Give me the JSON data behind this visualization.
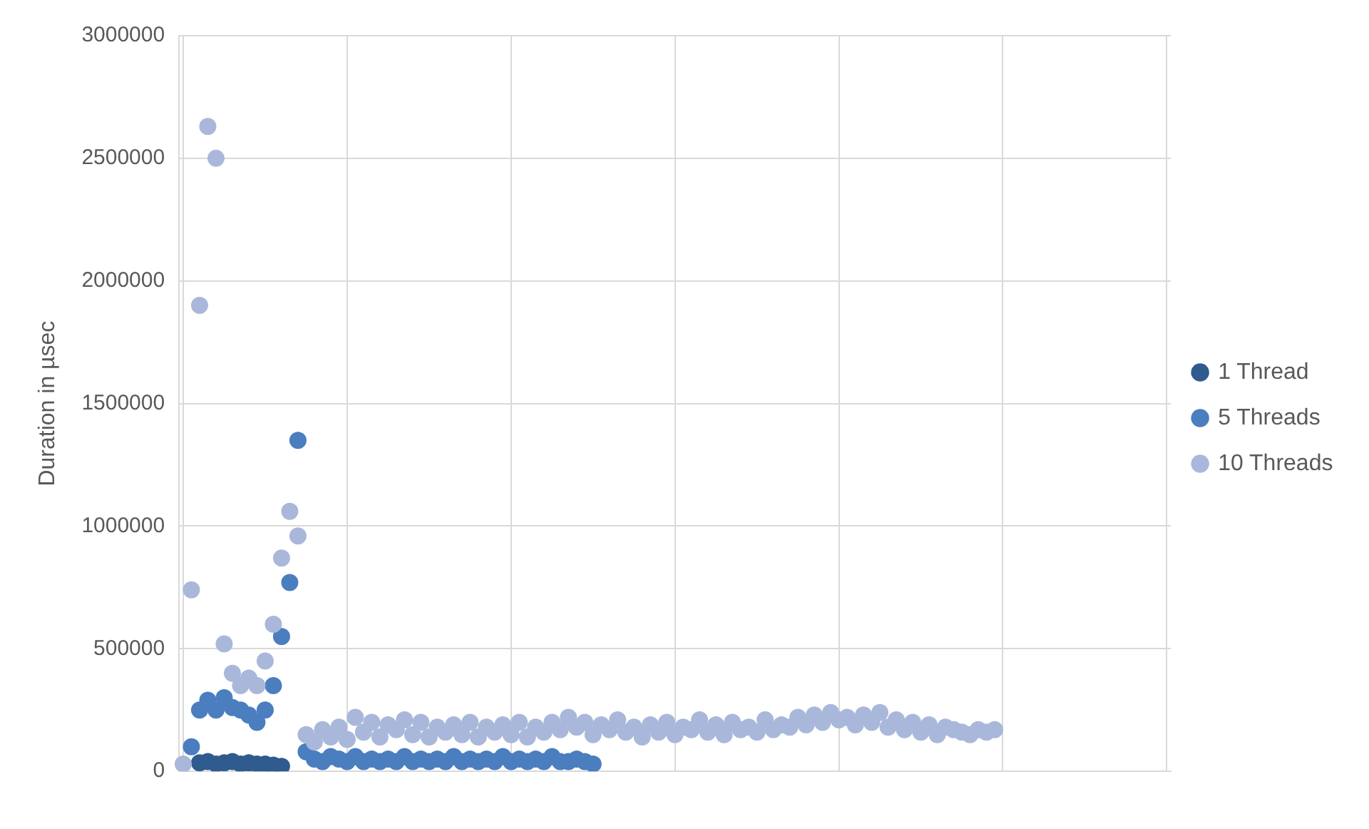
{
  "chart_data": {
    "type": "scatter",
    "ylabel": "Duration in µsec",
    "categories": [
      null,
      null,
      null,
      null,
      null,
      null,
      null,
      null,
      null,
      null,
      null,
      null,
      null,
      null,
      null,
      null,
      null,
      null,
      null,
      null,
      null,
      null,
      null,
      null,
      null,
      null,
      null,
      null,
      null,
      null,
      null,
      null,
      null,
      null,
      null,
      null,
      null,
      null,
      null,
      null,
      null,
      null,
      null,
      null,
      null,
      null,
      null,
      null,
      null,
      null,
      null,
      null,
      null,
      null,
      null,
      null,
      null,
      null,
      null,
      null,
      null,
      null,
      null,
      null,
      null,
      null,
      null,
      null,
      null,
      null,
      null,
      null,
      null,
      null,
      null,
      null,
      null,
      null,
      null,
      null,
      null,
      null,
      null,
      null,
      null,
      null,
      null,
      null,
      null,
      null,
      null,
      null,
      null,
      null,
      null,
      null,
      null,
      null,
      null,
      null,
      null,
      null,
      null,
      null,
      null,
      null,
      null,
      null,
      null,
      null,
      null,
      null,
      null,
      null,
      null,
      null,
      null,
      null,
      null,
      null,
      null
    ],
    "ylim": [
      0,
      3000000
    ],
    "yticks": [
      0,
      500000,
      1000000,
      1500000,
      2000000,
      2500000,
      3000000
    ],
    "grid": true,
    "legend": "right",
    "marker": "circle",
    "series": [
      {
        "name": "1 Thread",
        "color": "#2f5b8e",
        "values": [
          null,
          null,
          35000,
          40000,
          30000,
          35000,
          40000,
          30000,
          35000,
          30000,
          30000,
          25000,
          20000,
          null,
          null,
          null,
          null,
          null,
          null,
          null,
          null,
          null,
          null,
          null,
          null,
          null,
          null,
          null,
          null,
          null,
          null,
          null,
          null,
          null,
          null,
          null,
          null,
          null,
          null,
          null,
          null,
          null,
          null,
          null,
          null,
          null,
          null,
          null,
          null,
          null,
          null,
          null,
          null,
          null,
          null,
          null,
          null,
          null,
          null,
          null,
          null,
          null,
          null,
          null,
          null,
          null,
          null,
          null,
          null,
          null,
          null,
          null,
          null,
          null,
          null,
          null,
          null,
          null,
          null,
          null,
          null,
          null,
          null,
          null,
          null,
          null,
          null,
          null,
          null,
          null,
          null,
          null,
          null,
          null,
          null,
          null,
          null,
          null,
          null,
          null,
          null,
          null,
          null,
          null,
          null,
          null,
          null,
          null,
          null,
          null,
          null,
          null,
          null,
          null,
          null,
          null,
          null,
          null,
          null,
          null,
          null
        ]
      },
      {
        "name": "5 Threads",
        "color": "#4a7ebf",
        "values": [
          null,
          100000,
          250000,
          290000,
          250000,
          300000,
          260000,
          250000,
          230000,
          200000,
          250000,
          350000,
          550000,
          770000,
          1350000,
          80000,
          50000,
          40000,
          60000,
          50000,
          40000,
          60000,
          40000,
          50000,
          40000,
          50000,
          40000,
          60000,
          40000,
          50000,
          40000,
          50000,
          40000,
          60000,
          40000,
          50000,
          40000,
          50000,
          40000,
          60000,
          40000,
          50000,
          40000,
          50000,
          40000,
          60000,
          40000,
          40000,
          50000,
          40000,
          30000,
          null,
          null,
          null,
          null,
          null,
          null,
          null,
          null,
          null,
          null,
          null,
          null,
          null,
          null,
          null,
          null,
          null,
          null,
          null,
          null,
          null,
          null,
          null,
          null,
          null,
          null,
          null,
          null,
          null,
          null,
          null,
          null,
          null,
          null,
          null,
          null,
          null,
          null,
          null,
          null,
          null,
          null,
          null,
          null,
          null,
          null,
          null,
          null,
          null,
          null,
          null,
          null,
          null,
          null,
          null,
          null,
          null,
          null,
          null,
          null,
          null,
          null,
          null,
          null,
          null,
          null,
          null,
          null,
          null,
          null
        ]
      },
      {
        "name": "10 Threads",
        "color": "#a9b8da",
        "values": [
          30000,
          740000,
          1900000,
          2630000,
          2500000,
          520000,
          400000,
          350000,
          380000,
          350000,
          450000,
          600000,
          870000,
          1060000,
          960000,
          150000,
          120000,
          170000,
          140000,
          180000,
          130000,
          220000,
          160000,
          200000,
          140000,
          190000,
          170000,
          210000,
          150000,
          200000,
          140000,
          180000,
          160000,
          190000,
          150000,
          200000,
          140000,
          180000,
          160000,
          190000,
          150000,
          200000,
          140000,
          180000,
          160000,
          200000,
          170000,
          220000,
          180000,
          200000,
          150000,
          190000,
          170000,
          210000,
          160000,
          180000,
          140000,
          190000,
          160000,
          200000,
          150000,
          180000,
          170000,
          210000,
          160000,
          190000,
          150000,
          200000,
          170000,
          180000,
          160000,
          210000,
          170000,
          190000,
          180000,
          220000,
          190000,
          230000,
          200000,
          240000,
          210000,
          220000,
          190000,
          230000,
          200000,
          240000,
          180000,
          210000,
          170000,
          200000,
          160000,
          190000,
          150000,
          180000,
          170000,
          160000,
          150000,
          170000,
          160000,
          170000,
          null,
          null,
          null,
          null,
          null,
          null,
          null,
          null,
          null,
          null,
          null,
          null,
          null,
          null,
          null,
          null,
          null,
          null,
          null,
          null,
          null
        ]
      }
    ]
  }
}
